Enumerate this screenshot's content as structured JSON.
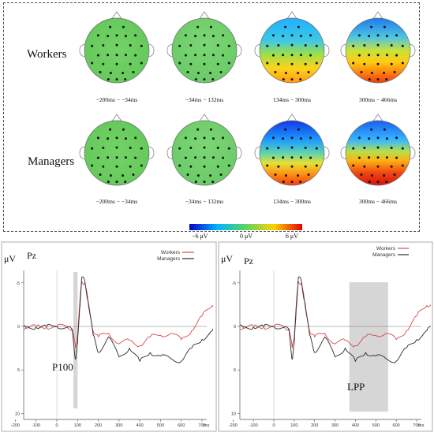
{
  "topomap": {
    "row_labels": [
      "Workers",
      "Managers"
    ],
    "time_windows": [
      "−200ms − −34ms",
      "−34ms − 132ms",
      "134ms − 300ms",
      "300ms − 466ms"
    ],
    "colorbar": {
      "min_label": "−6 μV",
      "mid_label": "0 μV",
      "max_label": "6 μV",
      "colors": [
        "#0a00c8",
        "#00b4ff",
        "#5dd45d",
        "#ffd200",
        "#e60000"
      ]
    }
  },
  "erp": {
    "y_unit": "μV",
    "x_unit": "ms",
    "left_panel": {
      "channel": "Pz",
      "annotation": "P100"
    },
    "right_panel": {
      "channel": "Pz",
      "annotation": "LPP"
    },
    "legend": [
      {
        "name": "Workers",
        "color": "#d44a4a"
      },
      {
        "name": "Managers",
        "color": "#2b2b2b"
      }
    ],
    "x_ticks": [
      "-200",
      "-100",
      "0",
      "100",
      "200",
      "300",
      "400",
      "500",
      "600",
      "700"
    ],
    "y_ticks": [
      "-5",
      "0",
      "5",
      "10"
    ]
  },
  "chart_data": {
    "type": "line",
    "xlabel": "ms",
    "ylabel": "μV",
    "xlim": [
      -200,
      800
    ],
    "ylim": [
      -7,
      12
    ],
    "y_inverted": true,
    "x": [
      -200,
      -150,
      -100,
      -50,
      0,
      50,
      75,
      90,
      100,
      110,
      120,
      135,
      150,
      175,
      200,
      250,
      300,
      350,
      400,
      450,
      500,
      550,
      600,
      650,
      700,
      750,
      780
    ],
    "series": [
      {
        "name": "Workers",
        "color": "#d44a4a",
        "values": [
          0,
          0.2,
          0,
          0.1,
          0,
          0,
          0.3,
          2.5,
          1,
          -2.5,
          -5.2,
          -5,
          -3,
          0.5,
          1.2,
          0.8,
          2,
          1.6,
          2.2,
          1.2,
          1,
          0.8,
          1.5,
          0.5,
          -1.2,
          -2.4,
          -2.8
        ]
      },
      {
        "name": "Managers",
        "color": "#2b2b2b",
        "values": [
          0,
          0.1,
          0.1,
          0,
          0,
          0.1,
          0.5,
          3.8,
          2,
          -2,
          -5.6,
          -5.2,
          -3,
          1,
          3,
          1.2,
          3.5,
          2.5,
          4,
          3,
          3.4,
          3.7,
          4,
          2.5,
          1.5,
          0.5,
          0
        ]
      }
    ],
    "highlights": [
      {
        "panel": "left",
        "label": "P100",
        "x_from": 80,
        "x_to": 100
      },
      {
        "panel": "right",
        "label": "LPP",
        "x_from": 370,
        "x_to": 560
      }
    ]
  }
}
